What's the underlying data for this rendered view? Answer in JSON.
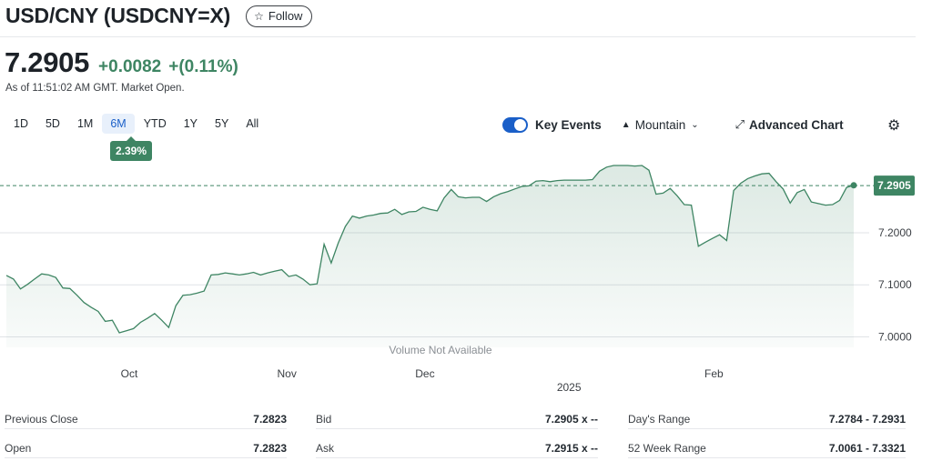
{
  "header": {
    "title": "USD/CNY (USDCNY=X)",
    "follow_label": "Follow"
  },
  "quote": {
    "price": "7.2905",
    "change": "+0.0082",
    "change_pct": "+(0.11%)",
    "as_of": "As of 11:51:02 AM GMT. Market Open."
  },
  "ranges": [
    "1D",
    "5D",
    "1M",
    "6M",
    "YTD",
    "1Y",
    "5Y",
    "All"
  ],
  "active_range_index": 3,
  "range_tooltip": "2.39%",
  "controls": {
    "key_events_label": "Key Events",
    "key_events_on": true,
    "mountain_label": "Mountain",
    "advanced_chart_label": "Advanced Chart"
  },
  "chart_data": {
    "type": "area",
    "title": "",
    "xlabel": "",
    "ylabel": "",
    "ylim": [
      6.98,
      7.35
    ],
    "y_ticks": [
      "7.2000",
      "7.1000",
      "7.0000"
    ],
    "y_tick_values": [
      7.2,
      7.1,
      7.0
    ],
    "x_ticks": [
      {
        "label": "Oct",
        "t": 0.145
      },
      {
        "label": "Nov",
        "t": 0.331
      },
      {
        "label": "Dec",
        "t": 0.494
      },
      {
        "label": "Feb",
        "t": 0.835
      }
    ],
    "year_label": {
      "label": "2025",
      "t": 0.664
    },
    "volume_note": "Volume Not Available",
    "last_price": 7.2905,
    "last_price_label": "7.2905",
    "grid": true,
    "line_color": "#3e8563",
    "fill_color": "#3e8563",
    "series": [
      {
        "values": [
          7.118,
          7.111,
          7.092,
          7.101,
          7.111,
          7.121,
          7.119,
          7.114,
          7.094,
          7.093,
          7.08,
          7.066,
          7.057,
          7.049,
          7.03,
          7.032,
          7.008,
          7.012,
          7.016,
          7.028,
          7.036,
          7.045,
          7.032,
          7.018,
          7.06,
          7.08,
          7.081,
          7.084,
          7.088,
          7.119,
          7.12,
          7.123,
          7.121,
          7.119,
          7.121,
          7.124,
          7.119,
          7.123,
          7.126,
          7.129,
          7.116,
          7.119,
          7.111,
          7.1,
          7.102,
          7.178,
          7.142,
          7.18,
          7.212,
          7.232,
          7.228,
          7.232,
          7.234,
          7.237,
          7.238,
          7.245,
          7.235,
          7.24,
          7.241,
          7.249,
          7.245,
          7.242,
          7.267,
          7.283,
          7.269,
          7.267,
          7.268,
          7.268,
          7.26,
          7.269,
          7.275,
          7.279,
          7.284,
          7.289,
          7.29,
          7.299,
          7.3,
          7.298,
          7.3,
          7.301,
          7.301,
          7.301,
          7.301,
          7.302,
          7.318,
          7.326,
          7.329,
          7.329,
          7.329,
          7.328,
          7.329,
          7.32,
          7.274,
          7.276,
          7.285,
          7.271,
          7.254,
          7.253,
          7.174,
          7.182,
          7.189,
          7.196,
          7.185,
          7.281,
          7.295,
          7.304,
          7.309,
          7.313,
          7.314,
          7.298,
          7.284,
          7.257,
          7.277,
          7.283,
          7.259,
          7.256,
          7.253,
          7.254,
          7.262,
          7.287,
          7.291
        ]
      }
    ]
  },
  "stats": {
    "left": [
      {
        "label": "Previous Close",
        "value": "7.2823"
      },
      {
        "label": "Open",
        "value": "7.2823"
      }
    ],
    "middle": [
      {
        "label": "Bid",
        "value": "7.2905 x --"
      },
      {
        "label": "Ask",
        "value": "7.2915 x --"
      }
    ],
    "right": [
      {
        "label": "Day's Range",
        "value": "7.2784 - 7.2931"
      },
      {
        "label": "52 Week Range",
        "value": "7.0061 - 7.3321"
      }
    ]
  }
}
